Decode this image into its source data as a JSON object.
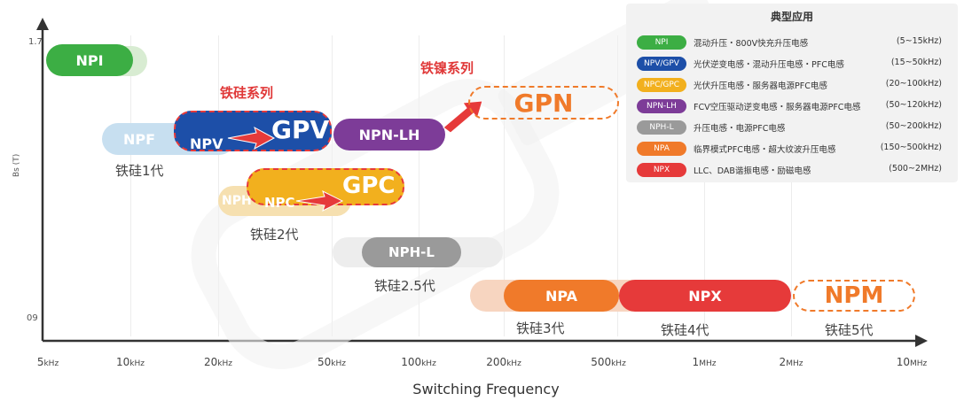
{
  "axes": {
    "y_label": "Bs (T)",
    "y_top": "1.7",
    "y_bottom": "09",
    "x_label": "Switching Frequency",
    "x_ticks": [
      {
        "num": "5",
        "unit": "kHz"
      },
      {
        "num": "10",
        "unit": "kHz"
      },
      {
        "num": "20",
        "unit": "kHz"
      },
      {
        "num": "50",
        "unit": "kHz"
      },
      {
        "num": "100",
        "unit": "kHz"
      },
      {
        "num": "200",
        "unit": "kHz"
      },
      {
        "num": "500",
        "unit": "kHz"
      },
      {
        "num": "1",
        "unit": "MHz"
      },
      {
        "num": "2",
        "unit": "MHz"
      },
      {
        "num": "10",
        "unit": "MHz"
      }
    ]
  },
  "series_titles": {
    "silicon_steel": "铁硅系列",
    "iron_nickel": "铁镍系列"
  },
  "materials": {
    "npi": "NPI",
    "npf": "NPF",
    "npv": "NPV",
    "gpv": "GPV",
    "npn_lh": "NPN-LH",
    "gpn": "GPN",
    "nph": "NPH",
    "npc": "NPC",
    "gpc": "GPC",
    "nph_l": "NPH-L",
    "npa": "NPA",
    "npx": "NPX",
    "npm": "NPM"
  },
  "generations": {
    "gen1": "铁硅1代",
    "gen2": "铁硅2代",
    "gen2_5": "铁硅2.5代",
    "gen3": "铁硅3代",
    "gen4": "铁硅4代",
    "gen5": "铁硅5代"
  },
  "legend": {
    "title": "典型应用",
    "rows": [
      {
        "key": "NPI",
        "desc": "混动升压・800V快充升压电感",
        "range": "(5~15kHz)",
        "color": "#3cae44"
      },
      {
        "key": "NPV/GPV",
        "desc": "光伏逆变电感・混动升压电感・PFC电感",
        "range": "(15~50kHz)",
        "color": "#1d4fa8"
      },
      {
        "key": "NPC/GPC",
        "desc": "光伏升压电感・服务器电源PFC电感",
        "range": "(20~100kHz)",
        "color": "#f2b01e"
      },
      {
        "key": "NPN-LH",
        "desc": "FCV空压驱动逆变电感・服务器电源PFC电感",
        "range": "(50~120kHz)",
        "color": "#7d3c98"
      },
      {
        "key": "NPH-L",
        "desc": "升压电感・电源PFC电感",
        "range": "(50~200kHz)",
        "color": "#9a9a9a"
      },
      {
        "key": "NPA",
        "desc": "临界模式PFC电感・超大纹波升压电感",
        "range": "(150~500kHz)",
        "color": "#f07a2a"
      },
      {
        "key": "NPX",
        "desc": "LLC、DAB谐振电感・励磁电感",
        "range": "(500~2MHz)",
        "color": "#e63a3a"
      }
    ]
  }
}
